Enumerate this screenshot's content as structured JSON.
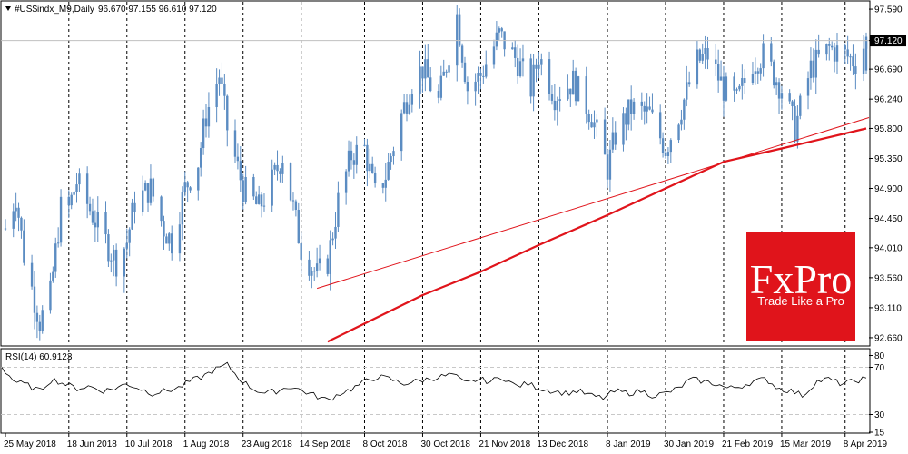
{
  "chart_data": [
    {
      "type": "candlestick",
      "title": "#US$indx_M9,Daily",
      "ohlc_label": "96.670 97.155 96.610 97.120",
      "last_price": 97.12,
      "last_price_label": "97.120",
      "ylim": [
        92.55,
        97.7
      ],
      "y_ticks": [
        "97.590",
        "97.120",
        "96.690",
        "96.240",
        "95.800",
        "95.350",
        "94.900",
        "94.450",
        "94.010",
        "93.560",
        "93.110",
        "92.660"
      ],
      "x_ticks": [
        "25 May 2018",
        "18 Jun 2018",
        "10 Jul 2018",
        "1 Aug 2018",
        "23 Aug 2018",
        "14 Sep 2018",
        "8 Oct 2018",
        "30 Oct 2018",
        "21 Nov 2018",
        "13 Dec 2018",
        "8 Jan 2019",
        "30 Jan 2019",
        "21 Feb 2019",
        "15 Mar 2019",
        "8 Apr 2019"
      ],
      "close_path": [
        {
          "date": "25 May 2018",
          "close": 94.3
        },
        {
          "date": "29 May 2018",
          "close": 94.8
        },
        {
          "date": "1 Jun 2018",
          "close": 93.9
        },
        {
          "date": "7 Jun 2018",
          "close": 92.9
        },
        {
          "date": "11 Jun 2018",
          "close": 93.3
        },
        {
          "date": "15 Jun 2018",
          "close": 94.6
        },
        {
          "date": "18 Jun 2018",
          "close": 94.6
        },
        {
          "date": "21 Jun 2018",
          "close": 95.0
        },
        {
          "date": "27 Jun 2018",
          "close": 94.5
        },
        {
          "date": "2 Jul 2018",
          "close": 94.1
        },
        {
          "date": "6 Jul 2018",
          "close": 93.8
        },
        {
          "date": "10 Jul 2018",
          "close": 94.1
        },
        {
          "date": "13 Jul 2018",
          "close": 94.7
        },
        {
          "date": "19 Jul 2018",
          "close": 94.9
        },
        {
          "date": "24 Jul 2018",
          "close": 94.3
        },
        {
          "date": "27 Jul 2018",
          "close": 94.1
        },
        {
          "date": "1 Aug 2018",
          "close": 94.9
        },
        {
          "date": "6 Aug 2018",
          "close": 95.3
        },
        {
          "date": "9 Aug 2018",
          "close": 96.0
        },
        {
          "date": "14 Aug 2018",
          "close": 96.6
        },
        {
          "date": "17 Aug 2018",
          "close": 95.8
        },
        {
          "date": "23 Aug 2018",
          "close": 94.9
        },
        {
          "date": "29 Aug 2018",
          "close": 94.6
        },
        {
          "date": "3 Sep 2018",
          "close": 95.0
        },
        {
          "date": "7 Sep 2018",
          "close": 95.4
        },
        {
          "date": "10 Sep 2018",
          "close": 94.8
        },
        {
          "date": "14 Sep 2018",
          "close": 94.0
        },
        {
          "date": "20 Sep 2018",
          "close": 93.6
        },
        {
          "date": "24 Sep 2018",
          "close": 93.8
        },
        {
          "date": "28 Sep 2018",
          "close": 94.7
        },
        {
          "date": "3 Oct 2018",
          "close": 95.4
        },
        {
          "date": "8 Oct 2018",
          "close": 95.5
        },
        {
          "date": "12 Oct 2018",
          "close": 94.8
        },
        {
          "date": "16 Oct 2018",
          "close": 95.1
        },
        {
          "date": "22 Oct 2018",
          "close": 96.0
        },
        {
          "date": "26 Oct 2018",
          "close": 96.5
        },
        {
          "date": "30 Oct 2018",
          "close": 96.7
        },
        {
          "date": "5 Nov 2018",
          "close": 96.2
        },
        {
          "date": "12 Nov 2018",
          "close": 97.5
        },
        {
          "date": "16 Nov 2018",
          "close": 96.4
        },
        {
          "date": "21 Nov 2018",
          "close": 96.6
        },
        {
          "date": "28 Nov 2018",
          "close": 97.2
        },
        {
          "date": "5 Dec 2018",
          "close": 96.8
        },
        {
          "date": "10 Dec 2018",
          "close": 96.4
        },
        {
          "date": "13 Dec 2018",
          "close": 96.9
        },
        {
          "date": "19 Dec 2018",
          "close": 96.3
        },
        {
          "date": "26 Dec 2018",
          "close": 96.5
        },
        {
          "date": "2 Jan 2019",
          "close": 96.0
        },
        {
          "date": "8 Jan 2019",
          "close": 95.2
        },
        {
          "date": "11 Jan 2019",
          "close": 95.7
        },
        {
          "date": "17 Jan 2019",
          "close": 96.1
        },
        {
          "date": "24 Jan 2019",
          "close": 96.0
        },
        {
          "date": "30 Jan 2019",
          "close": 95.5
        },
        {
          "date": "4 Feb 2019",
          "close": 96.0
        },
        {
          "date": "11 Feb 2019",
          "close": 96.8
        },
        {
          "date": "15 Feb 2019",
          "close": 96.9
        },
        {
          "date": "21 Feb 2019",
          "close": 96.4
        },
        {
          "date": "26 Feb 2019",
          "close": 96.2
        },
        {
          "date": "4 Mar 2019",
          "close": 96.8
        },
        {
          "date": "8 Mar 2019",
          "close": 96.9
        },
        {
          "date": "15 Mar 2019",
          "close": 96.4
        },
        {
          "date": "20 Mar 2019",
          "close": 95.8
        },
        {
          "date": "26 Mar 2019",
          "close": 96.7
        },
        {
          "date": "2 Apr 2019",
          "close": 97.0
        },
        {
          "date": "8 Apr 2019",
          "close": 96.9
        },
        {
          "date": "12 Apr 2019",
          "close": 96.8
        },
        {
          "date": "16 Apr 2019",
          "close": 97.12
        }
      ],
      "trendline": [
        {
          "date": "20 Sep 2018",
          "value": 93.4
        },
        {
          "date": "16 Apr 2019",
          "value": 95.95
        }
      ],
      "moving_average": [
        {
          "date": "24 Sep 2018",
          "value": 92.6
        },
        {
          "date": "30 Oct 2018",
          "value": 93.3
        },
        {
          "date": "21 Nov 2018",
          "value": 93.65
        },
        {
          "date": "13 Dec 2018",
          "value": 94.05
        },
        {
          "date": "8 Jan 2019",
          "value": 94.5
        },
        {
          "date": "30 Jan 2019",
          "value": 94.9
        },
        {
          "date": "21 Feb 2019",
          "value": 95.3
        },
        {
          "date": "15 Mar 2019",
          "value": 95.5
        },
        {
          "date": "16 Apr 2019",
          "value": 95.8
        }
      ],
      "colors": {
        "candles": "#5b8cc2",
        "trendline": "#e0141b",
        "moving_average": "#e0141b",
        "grid": "#000000"
      }
    },
    {
      "type": "line",
      "title": "RSI(14) 60.9123",
      "ylim": [
        15,
        85
      ],
      "levels": [
        70,
        30
      ],
      "y_ticks": [
        "80",
        "70",
        "30",
        "15"
      ],
      "series": [
        {
          "values": [
            70,
            58,
            55,
            50,
            60,
            56,
            52,
            54,
            50,
            52,
            56,
            52,
            48,
            50,
            52,
            58,
            62,
            68,
            72,
            60,
            52,
            48,
            50,
            54,
            50,
            46,
            42,
            48,
            52,
            58,
            62,
            60,
            56,
            58,
            60,
            62,
            64,
            56,
            60,
            58,
            62,
            54,
            56,
            52,
            50,
            48,
            50,
            46,
            44,
            50,
            48,
            50,
            46,
            48,
            52,
            60,
            58,
            56,
            52,
            54,
            58,
            60,
            52,
            50,
            46,
            58,
            60,
            56,
            58,
            61
          ]
        }
      ],
      "colors": {
        "line": "#000000",
        "levels": "#c8c8c8"
      }
    }
  ],
  "branding": {
    "logo_text": "FxPro",
    "tagline": "Trade Like a Pro",
    "color": "#e0141b"
  }
}
